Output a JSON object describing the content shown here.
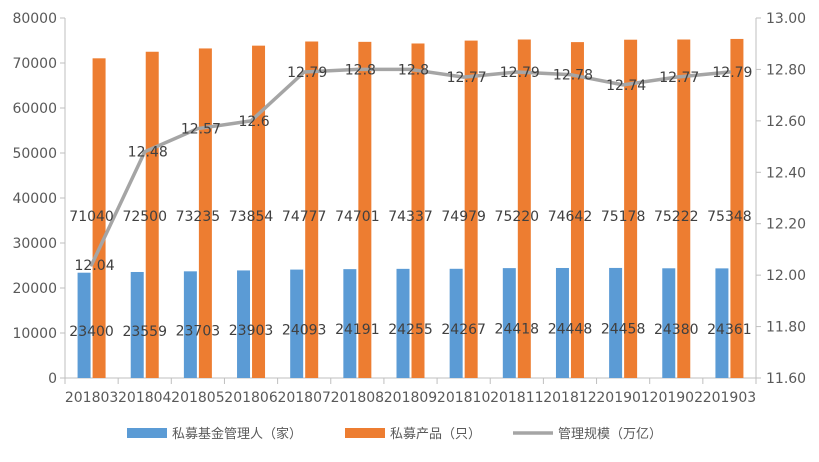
{
  "chart_data": {
    "type": "bar",
    "categories": [
      "201803",
      "201804",
      "201805",
      "201806",
      "201807",
      "201808",
      "201809",
      "201810",
      "201811",
      "201812",
      "201901",
      "201902",
      "201903"
    ],
    "series": [
      {
        "name": "私募基金管理人（家）",
        "kind": "bar",
        "axis": "left",
        "color": "#5B9BD5",
        "values": [
          23400,
          23559,
          23703,
          23903,
          24093,
          24191,
          24255,
          24267,
          24418,
          24448,
          24458,
          24380,
          24361
        ],
        "labels": [
          "23400",
          "23559",
          "23703",
          "23903",
          "24093",
          "24191",
          "24255",
          "24267",
          "24418",
          "24448",
          "24458",
          "24380",
          "24361"
        ]
      },
      {
        "name": "私募产品（只）",
        "kind": "bar",
        "axis": "left",
        "color": "#ED7D31",
        "values": [
          71040,
          72500,
          73235,
          73854,
          74777,
          74701,
          74337,
          74979,
          75220,
          74642,
          75178,
          75222,
          75348
        ],
        "labels": [
          "71040",
          "72500",
          "73235",
          "73854",
          "74777",
          "74701",
          "74337",
          "74979",
          "75220",
          "74642",
          "75178",
          "75222",
          "75348"
        ]
      },
      {
        "name": "管理规模（万亿）",
        "kind": "line",
        "axis": "right",
        "color": "#A5A5A5",
        "values": [
          12.04,
          12.48,
          12.57,
          12.6,
          12.79,
          12.8,
          12.8,
          12.77,
          12.79,
          12.78,
          12.74,
          12.77,
          12.79
        ],
        "labels": [
          "12.04",
          "12.48",
          "12.57",
          "12.6",
          "12.79",
          "12.8",
          "12.8",
          "12.77",
          "12.79",
          "12.78",
          "12.74",
          "12.77",
          "12.79"
        ]
      }
    ],
    "y_left": {
      "ylim": [
        0,
        80000
      ],
      "ticks": [
        "0",
        "10000",
        "20000",
        "30000",
        "40000",
        "50000",
        "60000",
        "70000",
        "80000"
      ]
    },
    "y_right": {
      "ylim": [
        11.6,
        13.0
      ],
      "ticks": [
        "11.60",
        "11.80",
        "12.00",
        "12.20",
        "12.40",
        "12.60",
        "12.80",
        "13.00"
      ]
    },
    "grid": false,
    "legend": "bottom",
    "title": "",
    "xlabel": "",
    "ylabel": ""
  }
}
